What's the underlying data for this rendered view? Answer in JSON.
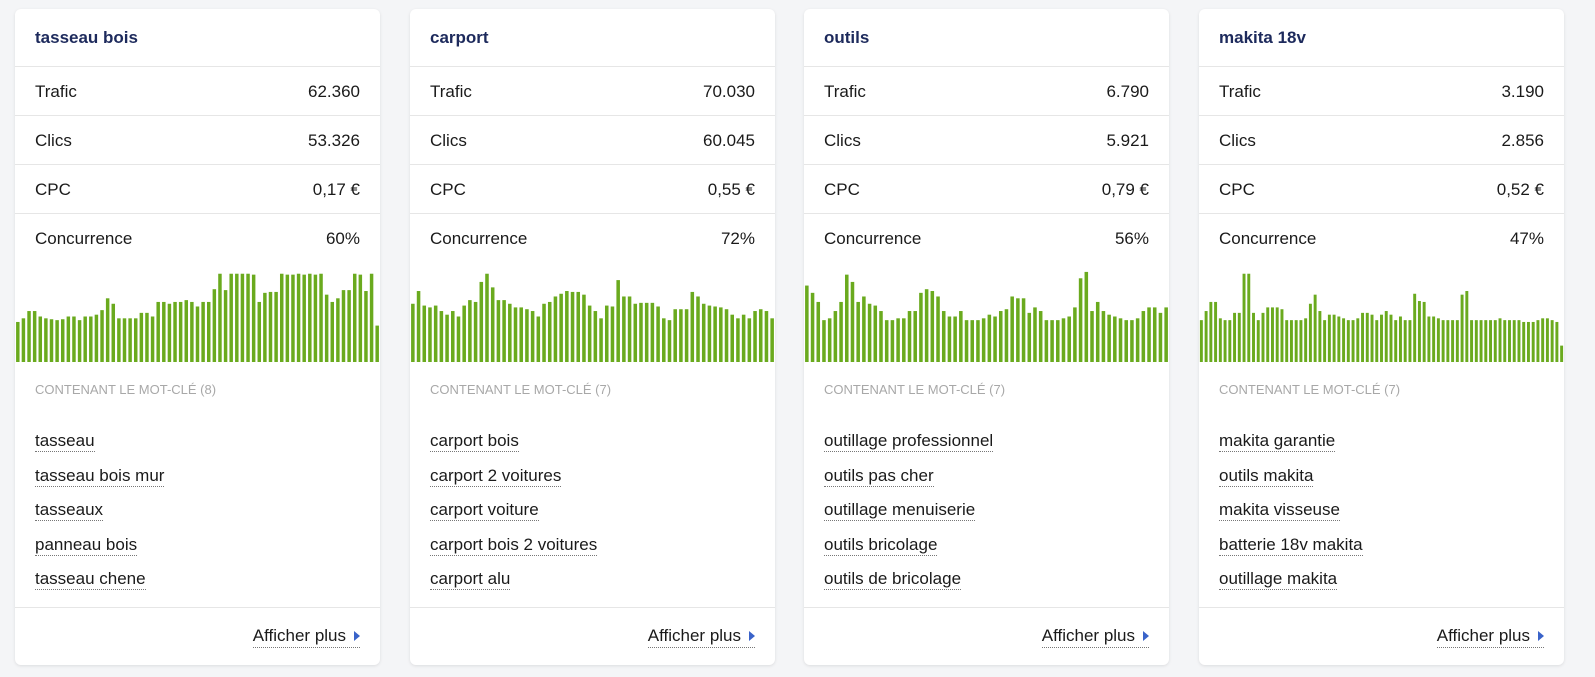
{
  "colors": {
    "bar": "#6aaa1e",
    "title": "#1d2a5c",
    "arrow": "#3a63c9"
  },
  "cards": [
    {
      "title": "tasseau bois",
      "metrics": [
        {
          "label": "Trafic",
          "value": "62.360"
        },
        {
          "label": "Clics",
          "value": "53.326"
        },
        {
          "label": "CPC",
          "value": "0,17 €"
        },
        {
          "label": "Concurrence",
          "value": "60%"
        }
      ],
      "trend": [
        0.44,
        0.48,
        0.56,
        0.56,
        0.5,
        0.48,
        0.47,
        0.46,
        0.47,
        0.5,
        0.5,
        0.46,
        0.5,
        0.5,
        0.52,
        0.57,
        0.7,
        0.64,
        0.48,
        0.48,
        0.48,
        0.48,
        0.54,
        0.54,
        0.5,
        0.66,
        0.66,
        0.64,
        0.66,
        0.66,
        0.68,
        0.66,
        0.61,
        0.66,
        0.66,
        0.8,
        0.97,
        0.79,
        0.97,
        0.97,
        0.97,
        0.97,
        0.96,
        0.66,
        0.76,
        0.77,
        0.77,
        0.97,
        0.96,
        0.96,
        0.97,
        0.96,
        0.97,
        0.96,
        0.97,
        0.74,
        0.66,
        0.7,
        0.79,
        0.79,
        0.97,
        0.96,
        0.78,
        0.97,
        0.4
      ],
      "section_label": "CONTENANT LE MOT-CLÉ (8)",
      "keywords": [
        "tasseau",
        "tasseau bois mur",
        "tasseaux",
        "panneau bois",
        "tasseau chene"
      ],
      "more_label": "Afficher plus"
    },
    {
      "title": "carport",
      "metrics": [
        {
          "label": "Trafic",
          "value": "70.030"
        },
        {
          "label": "Clics",
          "value": "60.045"
        },
        {
          "label": "CPC",
          "value": "0,55 €"
        },
        {
          "label": "Concurrence",
          "value": "72%"
        }
      ],
      "trend": [
        0.64,
        0.78,
        0.62,
        0.6,
        0.62,
        0.56,
        0.52,
        0.56,
        0.5,
        0.62,
        0.68,
        0.66,
        0.88,
        0.97,
        0.82,
        0.68,
        0.68,
        0.64,
        0.6,
        0.6,
        0.58,
        0.56,
        0.5,
        0.64,
        0.66,
        0.72,
        0.75,
        0.78,
        0.77,
        0.77,
        0.74,
        0.62,
        0.56,
        0.48,
        0.62,
        0.61,
        0.9,
        0.72,
        0.72,
        0.64,
        0.65,
        0.65,
        0.65,
        0.61,
        0.48,
        0.46,
        0.58,
        0.58,
        0.58,
        0.77,
        0.72,
        0.64,
        0.62,
        0.61,
        0.6,
        0.58,
        0.52,
        0.48,
        0.52,
        0.48,
        0.56,
        0.58,
        0.56,
        0.48
      ],
      "section_label": "CONTENANT LE MOT-CLÉ (7)",
      "keywords": [
        "carport bois",
        "carport 2 voitures",
        "carport voiture",
        "carport bois 2 voitures",
        "carport alu"
      ],
      "more_label": "Afficher plus"
    },
    {
      "title": "outils",
      "metrics": [
        {
          "label": "Trafic",
          "value": "6.790"
        },
        {
          "label": "Clics",
          "value": "5.921"
        },
        {
          "label": "CPC",
          "value": "0,79 €"
        },
        {
          "label": "Concurrence",
          "value": "56%"
        }
      ],
      "trend": [
        0.84,
        0.76,
        0.66,
        0.46,
        0.48,
        0.56,
        0.66,
        0.96,
        0.88,
        0.66,
        0.72,
        0.64,
        0.62,
        0.56,
        0.46,
        0.46,
        0.48,
        0.48,
        0.56,
        0.56,
        0.76,
        0.8,
        0.78,
        0.72,
        0.56,
        0.5,
        0.5,
        0.56,
        0.46,
        0.46,
        0.46,
        0.48,
        0.52,
        0.5,
        0.56,
        0.58,
        0.72,
        0.7,
        0.7,
        0.54,
        0.6,
        0.56,
        0.46,
        0.46,
        0.46,
        0.48,
        0.5,
        0.6,
        0.92,
        0.99,
        0.56,
        0.66,
        0.56,
        0.52,
        0.5,
        0.48,
        0.46,
        0.46,
        0.48,
        0.56,
        0.6,
        0.6,
        0.54,
        0.6
      ],
      "section_label": "CONTENANT LE MOT-CLÉ (7)",
      "keywords": [
        "outillage professionnel",
        "outils pas cher",
        "outillage menuiserie",
        "outils bricolage",
        "outils de bricolage"
      ],
      "more_label": "Afficher plus"
    },
    {
      "title": "makita 18v",
      "metrics": [
        {
          "label": "Trafic",
          "value": "3.190"
        },
        {
          "label": "Clics",
          "value": "2.856"
        },
        {
          "label": "CPC",
          "value": "0,52 €"
        },
        {
          "label": "Concurrence",
          "value": "47%"
        }
      ],
      "trend": [
        0.46,
        0.56,
        0.66,
        0.66,
        0.48,
        0.46,
        0.46,
        0.54,
        0.54,
        0.97,
        0.97,
        0.54,
        0.46,
        0.54,
        0.6,
        0.6,
        0.6,
        0.58,
        0.46,
        0.46,
        0.46,
        0.46,
        0.48,
        0.64,
        0.74,
        0.56,
        0.46,
        0.52,
        0.52,
        0.5,
        0.48,
        0.46,
        0.46,
        0.48,
        0.54,
        0.54,
        0.52,
        0.46,
        0.52,
        0.56,
        0.52,
        0.46,
        0.5,
        0.46,
        0.46,
        0.75,
        0.67,
        0.66,
        0.5,
        0.5,
        0.48,
        0.46,
        0.46,
        0.46,
        0.46,
        0.74,
        0.78,
        0.46,
        0.46,
        0.46,
        0.46,
        0.46,
        0.46,
        0.48,
        0.46,
        0.46,
        0.46,
        0.46,
        0.44,
        0.44,
        0.44,
        0.46,
        0.48,
        0.48,
        0.46,
        0.44,
        0.18
      ],
      "section_label": "CONTENANT LE MOT-CLÉ (7)",
      "keywords": [
        "makita garantie",
        "outils makita",
        "makita visseuse",
        "batterie 18v makita",
        "outillage makita"
      ],
      "more_label": "Afficher plus"
    }
  ]
}
